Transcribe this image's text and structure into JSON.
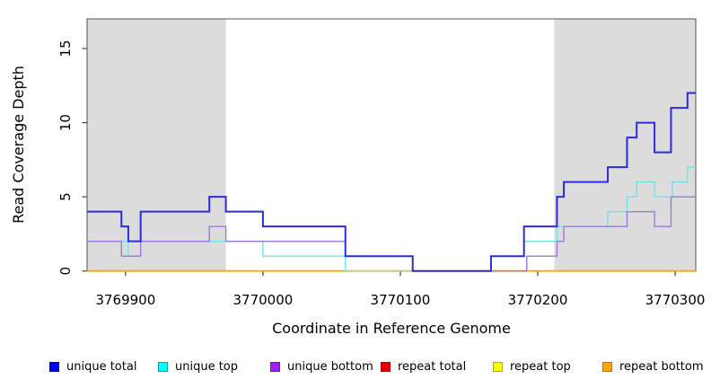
{
  "chart_data": {
    "type": "line",
    "subtype": "step-coverage-plot",
    "title": "",
    "xlabel": "Coordinate in Reference Genome",
    "ylabel": "Read Coverage Depth",
    "xlim": [
      3769872,
      3770315
    ],
    "ylim": [
      0,
      17
    ],
    "xticks": [
      3769900,
      3770000,
      3770100,
      3770200,
      3770300
    ],
    "yticks": [
      0,
      5,
      10,
      15
    ],
    "grid": "off",
    "legend_position": "bottom",
    "shaded_regions": [
      {
        "name": "left-gray-region",
        "x0": 3769872,
        "x1": 3769973,
        "color": "#DCDCDC"
      },
      {
        "name": "right-gray-region",
        "x0": 3770212,
        "x1": 3770315,
        "color": "#DCDCDC"
      }
    ],
    "series": [
      {
        "name": "repeat total",
        "line_color": "#DD0000",
        "width": 1.4,
        "steps": [
          [
            3769872,
            0
          ],
          [
            3770315,
            0
          ]
        ]
      },
      {
        "name": "repeat top",
        "line_color": "#FFE800",
        "width": 1.4,
        "steps": [
          [
            3769872,
            0
          ],
          [
            3770315,
            0
          ]
        ]
      },
      {
        "name": "repeat bottom",
        "line_color": "#FFA500",
        "width": 1.8,
        "steps": [
          [
            3769872,
            0
          ],
          [
            3770315,
            0
          ]
        ]
      },
      {
        "name": "unique top",
        "line_color": "#6FE6E6",
        "width": 1.4,
        "steps": [
          [
            3769872,
            2
          ],
          [
            3769902,
            1
          ],
          [
            3769911,
            2
          ],
          [
            3770000,
            1
          ],
          [
            3770060,
            0
          ],
          [
            3770166,
            1
          ],
          [
            3770190,
            2
          ],
          [
            3770214,
            3
          ],
          [
            3770251,
            4
          ],
          [
            3770265,
            5
          ],
          [
            3770272,
            6
          ],
          [
            3770285,
            5
          ],
          [
            3770298,
            6
          ],
          [
            3770309,
            7
          ],
          [
            3770315,
            7
          ]
        ]
      },
      {
        "name": "unique bottom",
        "line_color": "#9B7ADF",
        "width": 1.4,
        "steps": [
          [
            3769872,
            2
          ],
          [
            3769897,
            1
          ],
          [
            3769911,
            2
          ],
          [
            3769961,
            3
          ],
          [
            3769973,
            2
          ],
          [
            3770060,
            1
          ],
          [
            3770109,
            0
          ],
          [
            3770192,
            1
          ],
          [
            3770214,
            2
          ],
          [
            3770219,
            3
          ],
          [
            3770265,
            4
          ],
          [
            3770285,
            3
          ],
          [
            3770297,
            5
          ],
          [
            3770315,
            5
          ]
        ]
      },
      {
        "name": "unique total",
        "line_color": "#2B2BE0",
        "width": 2,
        "steps": [
          [
            3769872,
            4
          ],
          [
            3769897,
            3
          ],
          [
            3769902,
            2
          ],
          [
            3769911,
            4
          ],
          [
            3769961,
            5
          ],
          [
            3769973,
            4
          ],
          [
            3770000,
            3
          ],
          [
            3770060,
            1
          ],
          [
            3770109,
            0
          ],
          [
            3770166,
            1
          ],
          [
            3770190,
            3
          ],
          [
            3770214,
            5
          ],
          [
            3770219,
            6
          ],
          [
            3770251,
            7
          ],
          [
            3770265,
            9
          ],
          [
            3770272,
            10
          ],
          [
            3770285,
            8
          ],
          [
            3770297,
            11
          ],
          [
            3770309,
            12
          ],
          [
            3770315,
            12
          ]
        ]
      }
    ],
    "legend": [
      {
        "label": "unique total",
        "fill": "#0000EE",
        "border": "#0000A8"
      },
      {
        "label": "unique top",
        "fill": "#00FFFF",
        "border": "#00A8A8"
      },
      {
        "label": "unique bottom",
        "fill": "#A020F0",
        "border": "#7612B4"
      },
      {
        "label": "repeat total",
        "fill": "#EE0000",
        "border": "#A80000"
      },
      {
        "label": "repeat top",
        "fill": "#FFFF00",
        "border": "#B0B000"
      },
      {
        "label": "repeat bottom",
        "fill": "#FFA500",
        "border": "#B87400"
      }
    ]
  }
}
